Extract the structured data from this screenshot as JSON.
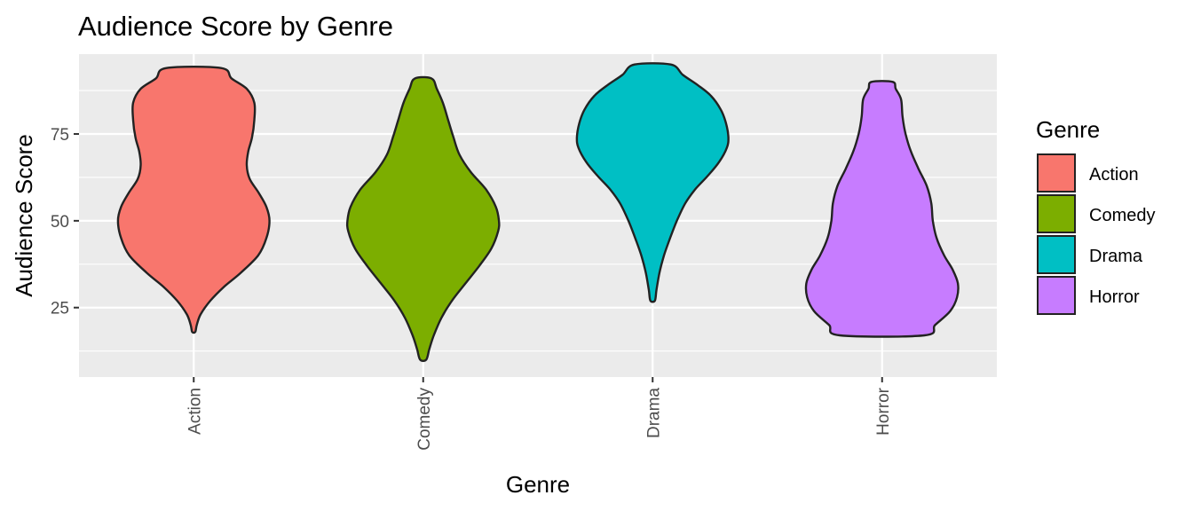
{
  "chart_data": {
    "type": "violin",
    "title": "Audience Score by Genre",
    "xlabel": "Genre",
    "ylabel": "Audience Score",
    "ylim": [
      5,
      98
    ],
    "yticks": [
      25,
      50,
      75
    ],
    "grid": true,
    "legend": {
      "title": "Genre",
      "position": "right",
      "items": [
        {
          "label": "Action",
          "color": "#F8766D"
        },
        {
          "label": "Comedy",
          "color": "#7CAE00"
        },
        {
          "label": "Drama",
          "color": "#00BFC4"
        },
        {
          "label": "Horror",
          "color": "#C77CFF"
        }
      ]
    },
    "series": [
      {
        "name": "Action",
        "color": "#F8766D",
        "min": 18,
        "max": 94,
        "profile": [
          [
            18,
            0.02
          ],
          [
            20,
            0.04
          ],
          [
            23,
            0.09
          ],
          [
            27,
            0.22
          ],
          [
            31,
            0.4
          ],
          [
            35,
            0.62
          ],
          [
            40,
            0.85
          ],
          [
            45,
            0.96
          ],
          [
            50,
            1.0
          ],
          [
            54,
            0.96
          ],
          [
            58,
            0.86
          ],
          [
            62,
            0.74
          ],
          [
            66,
            0.7
          ],
          [
            70,
            0.72
          ],
          [
            74,
            0.77
          ],
          [
            79,
            0.8
          ],
          [
            84,
            0.8
          ],
          [
            88,
            0.7
          ],
          [
            91,
            0.5
          ],
          [
            94,
            0.36
          ]
        ]
      },
      {
        "name": "Comedy",
        "color": "#7CAE00",
        "min": 10,
        "max": 91,
        "profile": [
          [
            10,
            0.04
          ],
          [
            13,
            0.08
          ],
          [
            17,
            0.14
          ],
          [
            22,
            0.24
          ],
          [
            27,
            0.38
          ],
          [
            32,
            0.56
          ],
          [
            37,
            0.74
          ],
          [
            42,
            0.9
          ],
          [
            47,
            0.99
          ],
          [
            50,
            1.0
          ],
          [
            54,
            0.96
          ],
          [
            59,
            0.83
          ],
          [
            64,
            0.63
          ],
          [
            69,
            0.48
          ],
          [
            74,
            0.4
          ],
          [
            79,
            0.33
          ],
          [
            84,
            0.26
          ],
          [
            88,
            0.18
          ],
          [
            91,
            0.11
          ]
        ]
      },
      {
        "name": "Drama",
        "color": "#00BFC4",
        "min": 27,
        "max": 95,
        "profile": [
          [
            27,
            0.03
          ],
          [
            30,
            0.05
          ],
          [
            35,
            0.09
          ],
          [
            40,
            0.15
          ],
          [
            45,
            0.23
          ],
          [
            50,
            0.32
          ],
          [
            55,
            0.43
          ],
          [
            59,
            0.56
          ],
          [
            63,
            0.73
          ],
          [
            67,
            0.88
          ],
          [
            71,
            0.98
          ],
          [
            74,
            1.0
          ],
          [
            78,
            0.97
          ],
          [
            82,
            0.9
          ],
          [
            86,
            0.77
          ],
          [
            89,
            0.6
          ],
          [
            92,
            0.4
          ],
          [
            95,
            0.24
          ]
        ]
      },
      {
        "name": "Horror",
        "color": "#C77CFF",
        "min": 17,
        "max": 90,
        "profile": [
          [
            17,
            0.56
          ],
          [
            20,
            0.7
          ],
          [
            24,
            0.9
          ],
          [
            28,
            0.99
          ],
          [
            32,
            1.0
          ],
          [
            36,
            0.93
          ],
          [
            40,
            0.82
          ],
          [
            45,
            0.72
          ],
          [
            50,
            0.67
          ],
          [
            55,
            0.65
          ],
          [
            60,
            0.59
          ],
          [
            65,
            0.48
          ],
          [
            70,
            0.38
          ],
          [
            75,
            0.31
          ],
          [
            80,
            0.27
          ],
          [
            85,
            0.25
          ],
          [
            88,
            0.18
          ],
          [
            90,
            0.14
          ]
        ]
      }
    ]
  }
}
